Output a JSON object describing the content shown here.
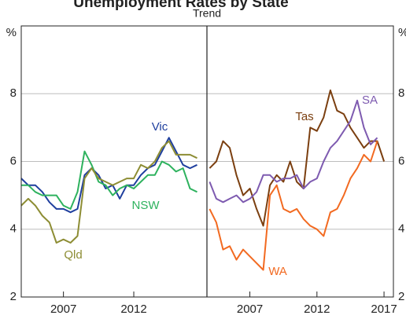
{
  "title": "Unemployment Rates by State",
  "subtitle": "Trend",
  "chart_data": [
    {
      "type": "line",
      "ylabel": "%",
      "grid": true,
      "x": [
        2004,
        2004.5,
        2005,
        2005.5,
        2006,
        2006.5,
        2007,
        2007.5,
        2008,
        2008.5,
        2009,
        2009.5,
        2010,
        2010.5,
        2011,
        2011.5,
        2012,
        2012.5,
        2013,
        2013.5,
        2014,
        2014.5,
        2015,
        2015.5,
        2016,
        2016.5
      ],
      "xlim": [
        2004,
        2017.2
      ],
      "xticks": [
        2007,
        2012
      ],
      "ylim": [
        2,
        10
      ],
      "yticks": [
        2,
        4,
        6,
        8
      ],
      "series": [
        {
          "name": "Vic",
          "color": "#1f3f9e",
          "values": [
            5.5,
            5.3,
            5.3,
            5.1,
            4.8,
            4.6,
            4.6,
            4.5,
            4.6,
            5.6,
            5.8,
            5.6,
            5.2,
            5.3,
            4.9,
            5.3,
            5.3,
            5.6,
            5.8,
            5.9,
            6.3,
            6.7,
            6.3,
            5.9,
            5.8,
            5.9
          ]
        },
        {
          "name": "NSW",
          "color": "#2eb25e",
          "values": [
            5.3,
            5.3,
            5.1,
            5.0,
            5.0,
            5.0,
            4.7,
            4.6,
            5.1,
            6.3,
            5.9,
            5.4,
            5.3,
            5.0,
            5.2,
            5.3,
            5.2,
            5.4,
            5.6,
            5.6,
            6.0,
            5.9,
            5.7,
            5.8,
            5.2,
            5.1
          ]
        },
        {
          "name": "Qld",
          "color": "#8d8d34",
          "values": [
            4.7,
            4.9,
            4.7,
            4.4,
            4.2,
            3.6,
            3.7,
            3.6,
            3.8,
            5.5,
            5.8,
            5.5,
            5.4,
            5.3,
            5.4,
            5.5,
            5.5,
            5.9,
            5.8,
            6.0,
            6.4,
            6.6,
            6.2,
            6.2,
            6.2,
            6.1
          ]
        }
      ]
    },
    {
      "type": "line",
      "ylabel": "%",
      "grid": true,
      "x": [
        2004,
        2004.5,
        2005,
        2005.5,
        2006,
        2006.5,
        2007,
        2007.5,
        2008,
        2008.5,
        2009,
        2009.5,
        2010,
        2010.5,
        2011,
        2011.5,
        2012,
        2012.5,
        2013,
        2013.5,
        2014,
        2014.5,
        2015,
        2015.5,
        2016,
        2016.5,
        2017
      ],
      "xlim": [
        2003.8,
        2017.7
      ],
      "xticks": [
        2007,
        2012,
        2017
      ],
      "ylim": [
        2,
        10
      ],
      "yticks": [
        2,
        4,
        6,
        8
      ],
      "series": [
        {
          "name": "Tas",
          "color": "#7b3f10",
          "values": [
            5.8,
            6.0,
            6.6,
            6.4,
            5.6,
            5.0,
            5.2,
            4.6,
            4.1,
            5.3,
            5.6,
            5.4,
            6.0,
            5.4,
            5.2,
            7.0,
            6.9,
            7.3,
            8.1,
            7.5,
            7.4,
            7.0,
            6.7,
            6.4,
            6.6,
            6.6,
            6.0
          ]
        },
        {
          "name": "SA",
          "color": "#7e5bb0",
          "values": [
            5.4,
            4.9,
            4.8,
            4.9,
            5.0,
            4.8,
            4.9,
            5.1,
            5.6,
            5.6,
            5.4,
            5.5,
            5.5,
            5.6,
            5.2,
            5.4,
            5.5,
            6.0,
            6.4,
            6.6,
            6.9,
            7.2,
            7.8,
            7.0,
            6.5,
            6.7,
            null
          ]
        },
        {
          "name": "WA",
          "color": "#f26a21",
          "values": [
            4.6,
            4.2,
            3.4,
            3.5,
            3.1,
            3.4,
            3.2,
            3.0,
            2.8,
            5.0,
            5.3,
            4.6,
            4.5,
            4.6,
            4.3,
            4.1,
            4.0,
            3.8,
            4.5,
            4.6,
            5.0,
            5.5,
            5.8,
            6.2,
            6.0,
            6.6,
            null
          ]
        }
      ]
    }
  ]
}
